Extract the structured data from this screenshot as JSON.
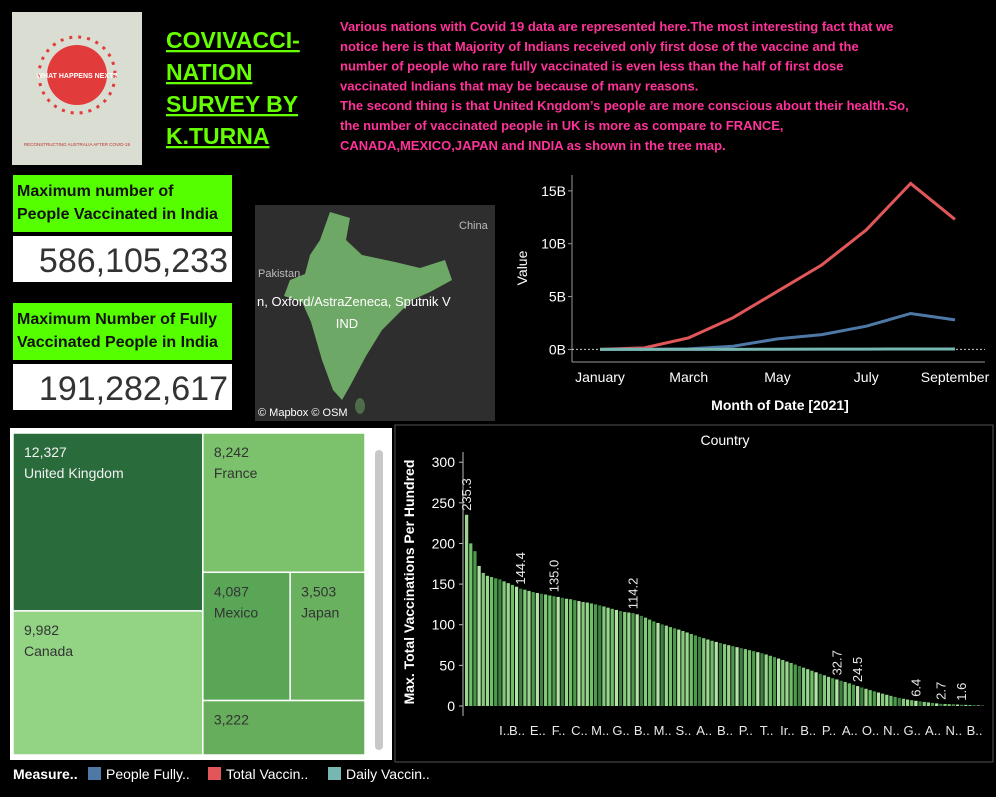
{
  "header": {
    "cover_title": "WHAT HAPPENS NEXT?",
    "cover_subtitle": "RECONSTRUCTING AUSTRALIA AFTER COVID-19",
    "title_lines": [
      "COVIVACCI-",
      "NATION",
      "SURVEY BY",
      "K.TURNA"
    ],
    "description_lines": [
      "Various nations with Covid 19 data are represented here.The most interesting fact that we",
      "notice here is that Majority of Indians received only first dose of the vaccine and the",
      "number of people who rare fully vaccinated is even less than the half of first dose",
      "vaccinated Indians that may be because of many reasons.",
      "The second thing is that United Kngdom’s people are more conscious about their health.So,",
      "the number of vaccinated people in UK is more as compare to FRANCE,",
      "CANADA,MEXICO,JAPAN and INDIA as shown in the tree map."
    ]
  },
  "kpis": [
    {
      "label_lines": [
        "Maximum number of",
        "People Vaccinated in India"
      ],
      "value": "586,105,233"
    },
    {
      "label_lines": [
        "Maximum Number of Fully",
        "Vaccinated People in India"
      ],
      "value": "191,282,617"
    }
  ],
  "map": {
    "labels": [
      "China",
      "Pakistan"
    ],
    "tooltip": "n, Oxford/AstraZeneca, Sputnik V",
    "country": "IND",
    "credit": "© Mapbox © OSM"
  },
  "chart_data": [
    {
      "type": "line",
      "y_label": "Value",
      "x_label": "Month of Date [2021]",
      "legend_title": "Measure..",
      "categories": [
        "January",
        null,
        "March",
        null,
        "May",
        null,
        "July",
        null,
        "September"
      ],
      "ylim": [
        -1000000000,
        16500000000
      ],
      "yticks": [
        {
          "value": 0,
          "label": "0B"
        },
        {
          "value": 5000000000,
          "label": "5B"
        },
        {
          "value": 10000000000,
          "label": "10B"
        },
        {
          "value": 15000000000,
          "label": "15B"
        }
      ],
      "zero_line": true,
      "series": [
        {
          "name": "People Fully..",
          "color": "#4e79a7",
          "values": [
            0,
            10000000,
            50000000,
            300000000,
            1000000000,
            1400000000,
            2200000000,
            3400000000,
            2800000000
          ]
        },
        {
          "name": "Total Vaccin..",
          "color": "#e15759",
          "values": [
            0,
            150000000,
            1100000000,
            3000000000,
            5500000000,
            8000000000,
            11300000000,
            15700000000,
            12300000000
          ]
        },
        {
          "name": "Daily Vaccin..",
          "color": "#76b7b2",
          "values": [
            0,
            2000000,
            5000000,
            10000000,
            20000000,
            25000000,
            30000000,
            40000000,
            35000000
          ]
        }
      ]
    },
    {
      "type": "treemap",
      "categories": [
        "United Kingdom",
        "France",
        "Canada",
        "Mexico",
        "Japan",
        null
      ],
      "values": [
        12327,
        8242,
        9982,
        4087,
        3503,
        3222
      ],
      "value_labels": [
        "12,327",
        "8,242",
        "9,982",
        "4,087",
        "3,503",
        "3,222"
      ],
      "colors": [
        "#2a6b3c",
        "#7cc26c",
        "#92d384",
        "#5aa657",
        "#69b15f",
        "#66ae5b"
      ]
    },
    {
      "type": "bar",
      "title": "Country",
      "y_label": "Max. Total Vaccinations Per Hundred",
      "ylim": [
        0,
        315
      ],
      "yticks": [
        0,
        50,
        100,
        150,
        200,
        250,
        300
      ],
      "palette": [
        "#9ad68f",
        "#6fbf68",
        "#4c9a4c",
        "#b5e2a7",
        "#3f7f42",
        "#82c97a"
      ],
      "categories": [
        null,
        null,
        null,
        null,
        null,
        null,
        null,
        null,
        null,
        "I..",
        null,
        null,
        "B..",
        null,
        null,
        null,
        null,
        "E..",
        null,
        null,
        null,
        null,
        "F..",
        null,
        null,
        null,
        null,
        "C..",
        null,
        null,
        null,
        null,
        "M..",
        null,
        null,
        null,
        null,
        "G..",
        null,
        null,
        null,
        null,
        "B..",
        null,
        null,
        null,
        null,
        "M..",
        null,
        null,
        null,
        null,
        "S..",
        null,
        null,
        null,
        null,
        "A..",
        null,
        null,
        null,
        null,
        "B..",
        null,
        null,
        null,
        null,
        "P..",
        null,
        null,
        null,
        null,
        "T..",
        null,
        null,
        null,
        null,
        "Ir..",
        null,
        null,
        null,
        null,
        "B..",
        null,
        null,
        null,
        null,
        "P..",
        null,
        null,
        null,
        null,
        "A..",
        null,
        null,
        null,
        null,
        "O..",
        null,
        null,
        null,
        null,
        "N..",
        null,
        null,
        null,
        null,
        "G..",
        null,
        null,
        null,
        null,
        "A..",
        null,
        null,
        null,
        null,
        "N..",
        null,
        null,
        null,
        null,
        "B..",
        null,
        null
      ],
      "values": [
        235.3,
        200.1,
        190.5,
        172.3,
        163.8,
        160.2,
        158.7,
        157.1,
        155.9,
        153.4,
        151.2,
        149.0,
        146.8,
        144.4,
        143.1,
        141.6,
        140.2,
        139.0,
        138.1,
        137.2,
        136.0,
        135.0,
        134.2,
        133.1,
        132.0,
        131.4,
        130.2,
        129.1,
        128.0,
        127.3,
        126.2,
        125.1,
        123.8,
        122.5,
        121.0,
        119.6,
        118.2,
        116.9,
        115.7,
        115.0,
        114.2,
        112.8,
        110.9,
        108.7,
        106.3,
        104.1,
        102.2,
        100.4,
        98.9,
        97.1,
        95.6,
        94.0,
        92.3,
        90.5,
        88.6,
        86.9,
        85.1,
        83.4,
        81.8,
        80.3,
        78.9,
        77.5,
        76.1,
        74.8,
        73.6,
        72.4,
        71.2,
        70.0,
        68.7,
        67.5,
        66.2,
        64.9,
        63.4,
        61.8,
        60.1,
        58.4,
        56.6,
        54.7,
        52.9,
        51.0,
        49.1,
        47.2,
        45.3,
        43.4,
        41.5,
        39.6,
        37.8,
        35.9,
        34.2,
        32.7,
        31.1,
        29.6,
        27.9,
        26.2,
        24.5,
        22.8,
        21.2,
        19.6,
        18.1,
        16.6,
        15.2,
        13.8,
        12.5,
        11.2,
        10.0,
        8.9,
        7.9,
        7.1,
        6.4,
        5.8,
        5.1,
        4.4,
        3.8,
        3.2,
        2.7,
        2.5,
        2.3,
        2.1,
        1.8,
        1.6,
        1.4,
        1.2,
        0.9,
        0.7,
        0.4
      ],
      "value_labels": [
        "235.3",
        null,
        null,
        null,
        null,
        null,
        null,
        null,
        null,
        null,
        null,
        null,
        null,
        "144.4",
        null,
        null,
        null,
        null,
        null,
        null,
        null,
        "135.0",
        null,
        null,
        null,
        null,
        null,
        null,
        null,
        null,
        null,
        null,
        null,
        null,
        null,
        null,
        null,
        null,
        null,
        null,
        "114.2",
        null,
        null,
        null,
        null,
        null,
        null,
        null,
        null,
        null,
        null,
        null,
        null,
        null,
        null,
        null,
        null,
        null,
        null,
        null,
        null,
        null,
        null,
        null,
        null,
        null,
        null,
        null,
        null,
        null,
        null,
        null,
        null,
        null,
        null,
        null,
        null,
        null,
        null,
        null,
        null,
        null,
        null,
        null,
        null,
        null,
        null,
        null,
        null,
        "32.7",
        null,
        null,
        null,
        null,
        "24.5",
        null,
        null,
        null,
        null,
        null,
        null,
        null,
        null,
        null,
        null,
        null,
        null,
        null,
        "6.4",
        null,
        null,
        null,
        null,
        null,
        "2.7",
        null,
        null,
        null,
        null,
        "1.6",
        null,
        null,
        null,
        null,
        null
      ]
    }
  ]
}
